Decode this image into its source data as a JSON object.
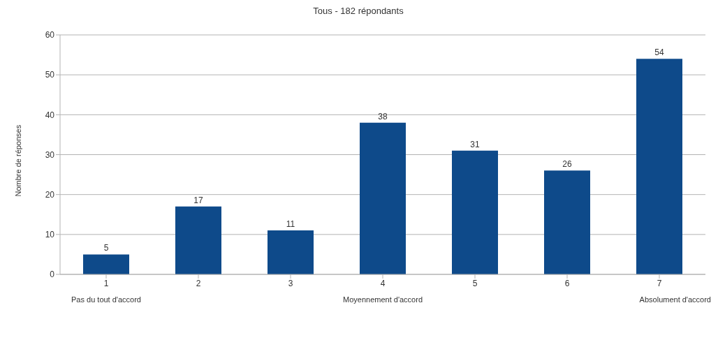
{
  "chart_data": {
    "type": "bar",
    "subtitle": "Tous - 182 répondants",
    "ylabel": "Nombre de réponses",
    "categories": [
      "1",
      "2",
      "3",
      "4",
      "5",
      "6",
      "7"
    ],
    "values": [
      5,
      17,
      11,
      38,
      31,
      26,
      54
    ],
    "color": "#0e4a8a",
    "ylim": [
      0,
      60
    ],
    "yticks": [
      0,
      10,
      20,
      30,
      40,
      50,
      60
    ],
    "grid": "y",
    "data_labels": true,
    "annotations": [
      "Pas du tout d'accord",
      "Moyennement d'accord",
      "Absolument d'accord"
    ]
  }
}
